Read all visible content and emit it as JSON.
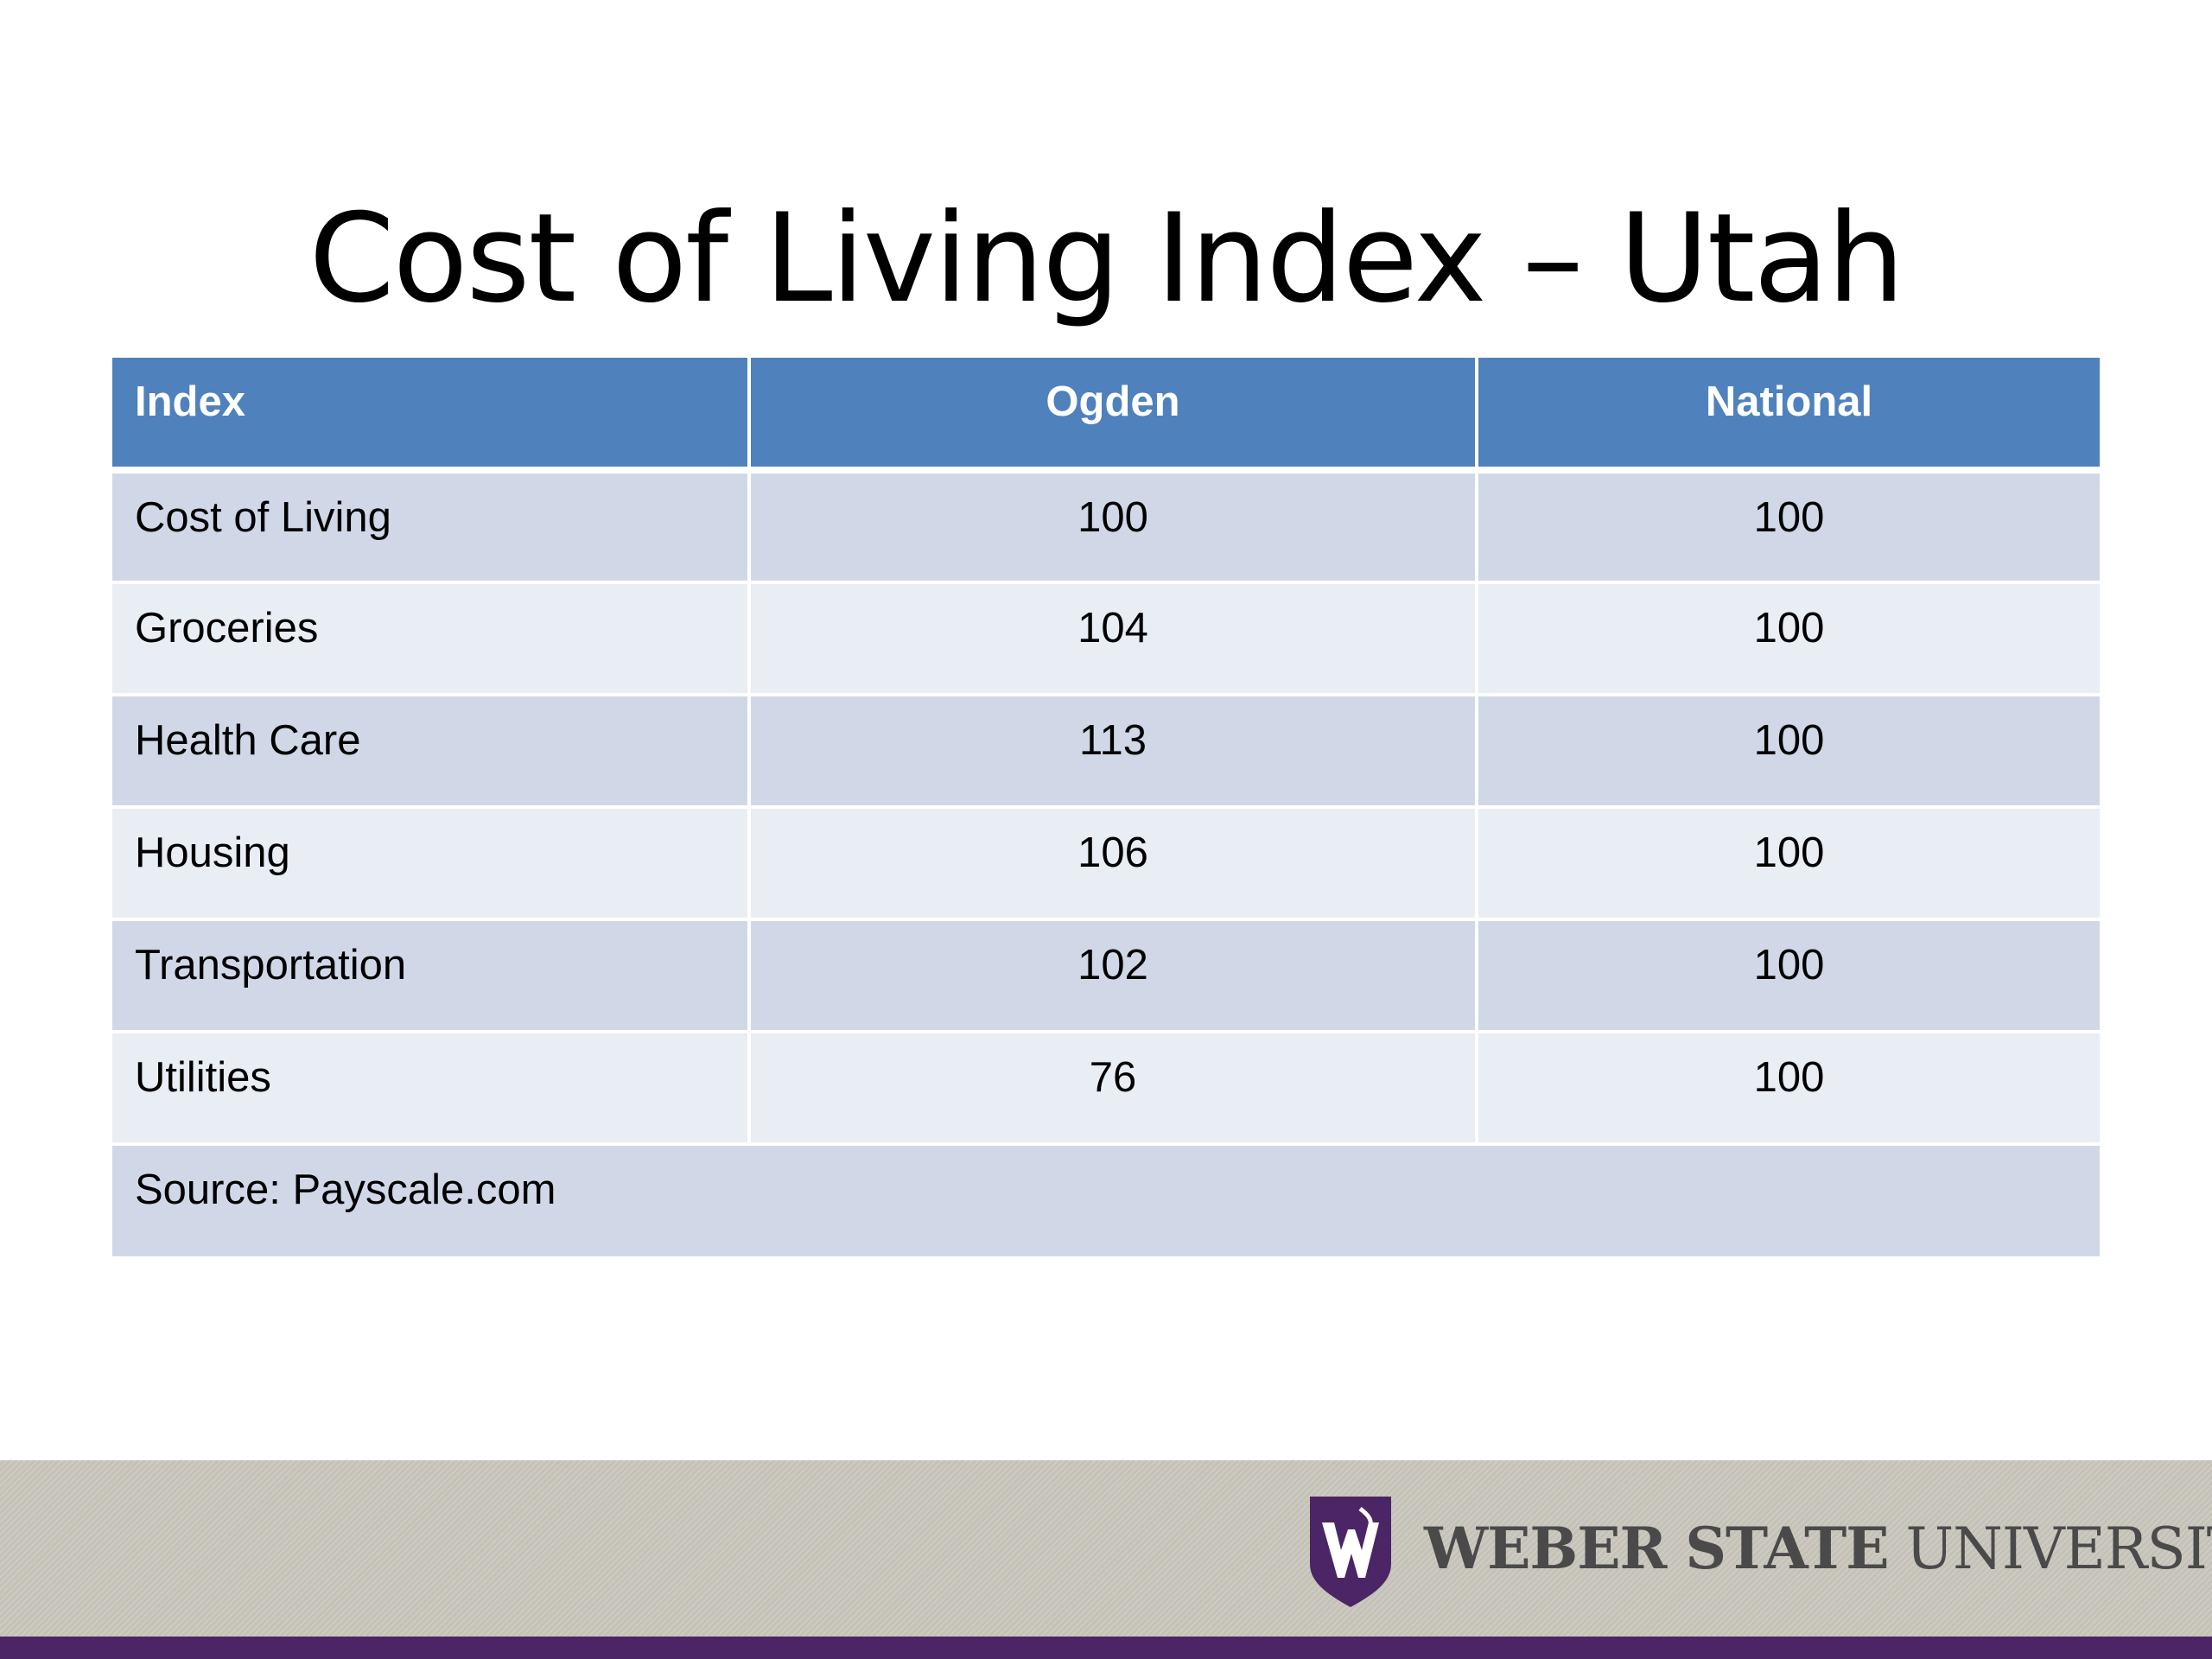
{
  "title": "Cost of Living Index – Utah",
  "table": {
    "headers": [
      "Index",
      "Ogden",
      "National"
    ],
    "rows": [
      {
        "index": "Cost of Living",
        "ogden": "100",
        "national": "100"
      },
      {
        "index": "Groceries",
        "ogden": "104",
        "national": "100"
      },
      {
        "index": "Health Care",
        "ogden": "113",
        "national": "100"
      },
      {
        "index": "Housing",
        "ogden": "106",
        "national": "100"
      },
      {
        "index": "Transportation",
        "ogden": "102",
        "national": "100"
      },
      {
        "index": "Utilities",
        "ogden": "76",
        "national": "100"
      }
    ],
    "source": "Source:  Payscale.com"
  },
  "footer": {
    "logo_text_bold": "WEBER STATE",
    "logo_text_regular": "UNIVERSITY",
    "logo_icon": "weber-state-w-shield-icon"
  },
  "colors": {
    "header_blue": "#4f81bd",
    "row_dark": "#d0d8e8",
    "row_light": "#e9edf4",
    "footer_gray": "#cac7bd",
    "brand_purple": "#4b2565"
  }
}
